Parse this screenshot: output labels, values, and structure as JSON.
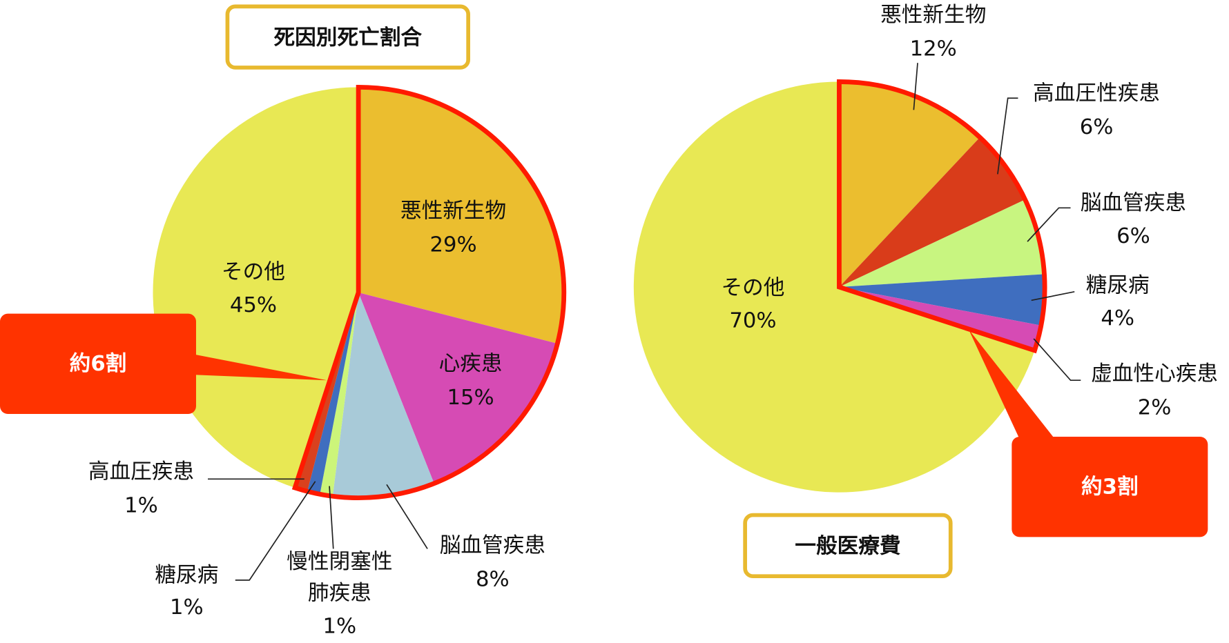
{
  "chart_data": [
    {
      "type": "pie",
      "title": "死因別死亡割合",
      "categories": [
        "悪性新生物",
        "心疾患",
        "脳血管疾患",
        "慢性閉塞性肺疾患",
        "糖尿病",
        "高血圧疾患",
        "その他"
      ],
      "values": [
        29,
        15,
        8,
        1,
        1,
        1,
        45
      ],
      "value_labels": [
        "29%",
        "15%",
        "8%",
        "1%",
        "1%",
        "1%",
        "45%"
      ],
      "colors": [
        "#EBBE2F",
        "#D64BB4",
        "#A8CAD8",
        "#CCF57A",
        "#3F6EBF",
        "#D9411E",
        "#E8E854"
      ],
      "annotation": "約6割"
    },
    {
      "type": "pie",
      "title": "一般医療費",
      "categories": [
        "悪性新生物",
        "高血圧性疾患",
        "脳血管疾患",
        "糖尿病",
        "虚血性心疾患",
        "その他"
      ],
      "values": [
        12,
        6,
        6,
        4,
        2,
        70
      ],
      "value_labels": [
        "12%",
        "6%",
        "6%",
        "4%",
        "2%",
        "70%"
      ],
      "colors": [
        "#EBBE2F",
        "#D93C1A",
        "#C8F580",
        "#3F6EBF",
        "#D64BB4",
        "#E8E854"
      ],
      "annotation": "約3割"
    }
  ]
}
